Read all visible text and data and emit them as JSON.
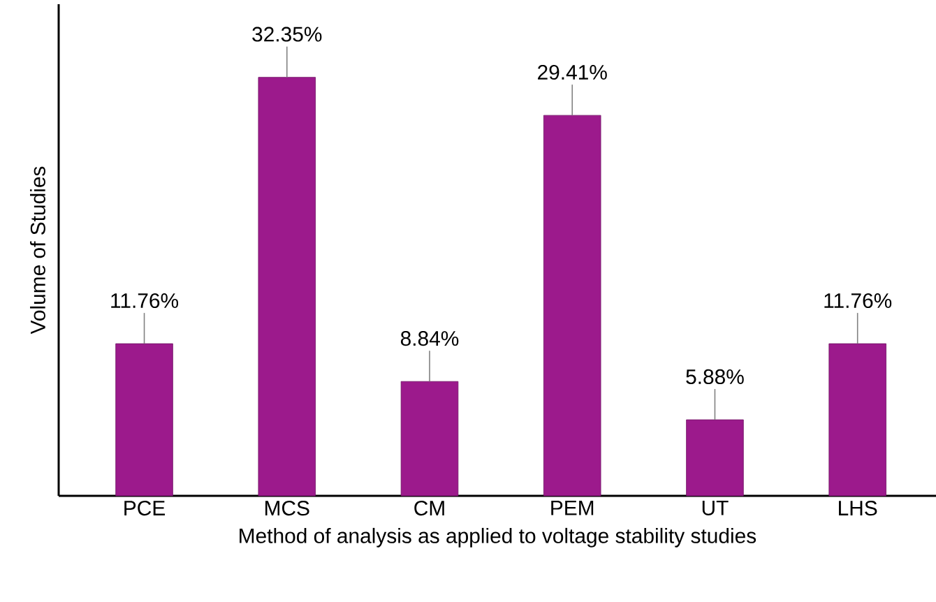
{
  "chart_data": {
    "type": "bar",
    "xlabel": "Method of analysis as applied to voltage stability studies",
    "ylabel": "Volume of Studies",
    "categories": [
      "PCE",
      "MCS",
      "CM",
      "PEM",
      "UT",
      "LHS"
    ],
    "values": [
      11.76,
      32.35,
      8.84,
      29.41,
      5.88,
      11.76
    ],
    "value_labels": [
      "11.76%",
      "32.35%",
      "8.84%",
      "29.41%",
      "5.88%",
      "11.76%"
    ],
    "color": "#9c1a8c",
    "ylim": [
      0,
      38
    ]
  }
}
